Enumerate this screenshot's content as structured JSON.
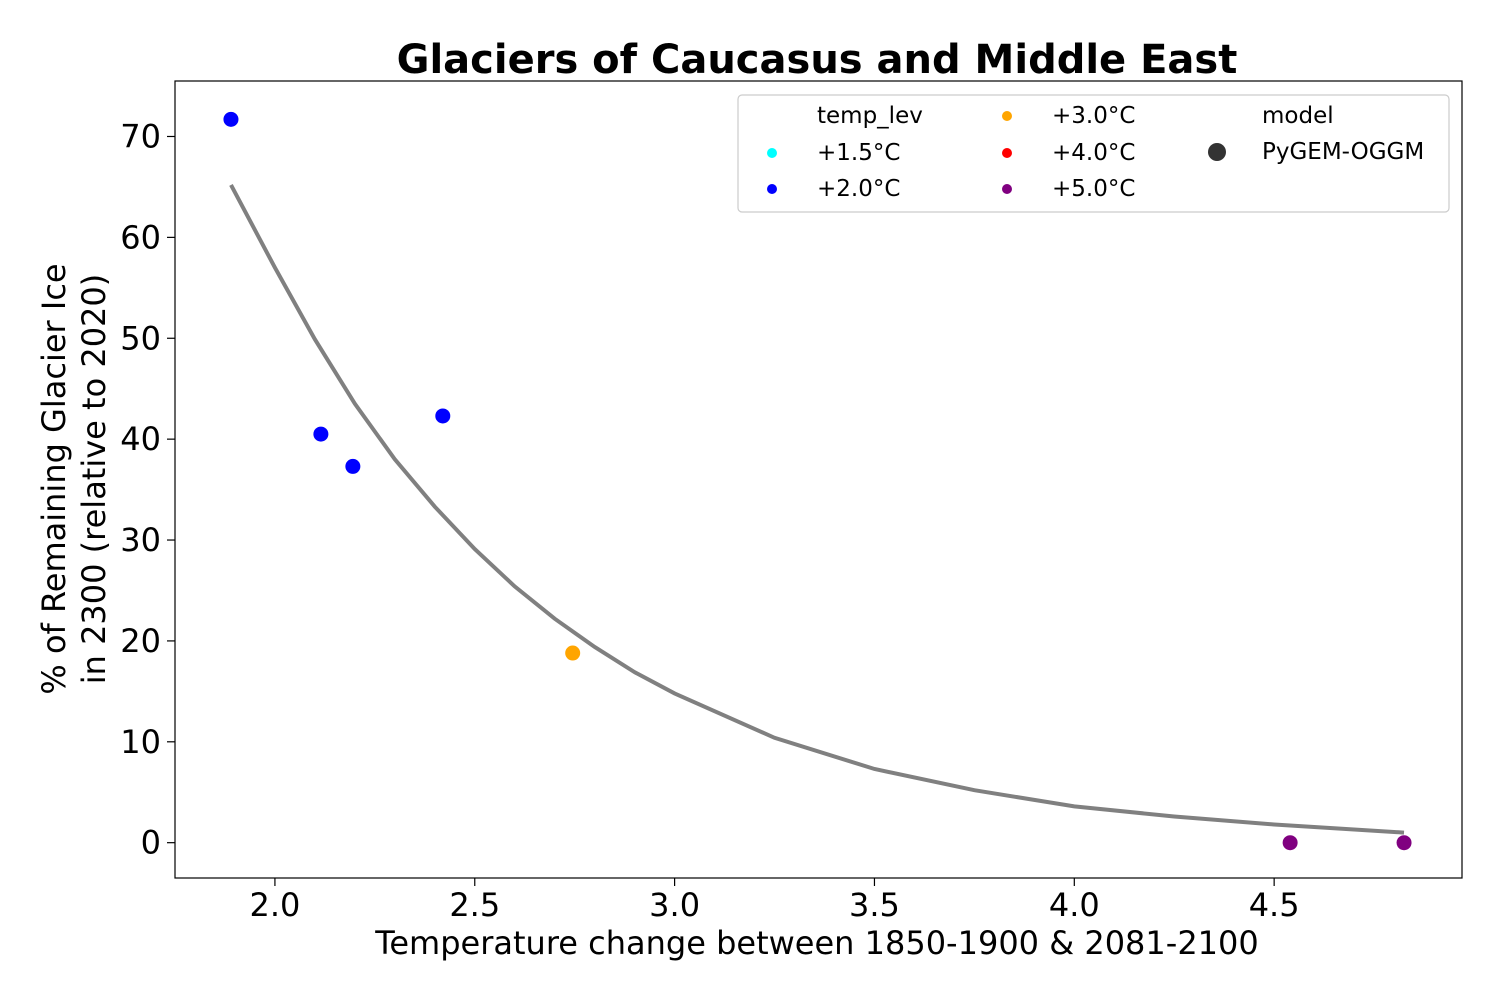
{
  "chart_data": {
    "type": "scatter",
    "title": "Glaciers of Caucasus and Middle East",
    "xlabel": "Temperature change between 1850-1900 & 2081-2100",
    "ylabel_line1": "% of Remaining Glacier Ice",
    "ylabel_line2": "in 2300 (relative to 2020)",
    "xlim": [
      1.75,
      4.97
    ],
    "ylim": [
      -3.5,
      75.5
    ],
    "xticks": [
      2.0,
      2.5,
      3.0,
      3.5,
      4.0,
      4.5
    ],
    "xtick_labels": [
      "2.0",
      "2.5",
      "3.0",
      "3.5",
      "4.0",
      "4.5"
    ],
    "yticks": [
      0,
      10,
      20,
      30,
      40,
      50,
      60,
      70
    ],
    "ytick_labels": [
      "0",
      "10",
      "20",
      "30",
      "40",
      "50",
      "60",
      "70"
    ],
    "grid": false,
    "points": [
      {
        "x": 1.89,
        "y": 71.7,
        "temp_lev": "+2.0°C",
        "model": "PyGEM-OGGM"
      },
      {
        "x": 2.115,
        "y": 40.5,
        "temp_lev": "+2.0°C",
        "model": "PyGEM-OGGM"
      },
      {
        "x": 2.195,
        "y": 37.3,
        "temp_lev": "+2.0°C",
        "model": "PyGEM-OGGM"
      },
      {
        "x": 2.42,
        "y": 42.3,
        "temp_lev": "+2.0°C",
        "model": "PyGEM-OGGM"
      },
      {
        "x": 2.745,
        "y": 18.8,
        "temp_lev": "+3.0°C",
        "model": "PyGEM-OGGM"
      },
      {
        "x": 4.54,
        "y": 0.0,
        "temp_lev": "+5.0°C",
        "model": "PyGEM-OGGM"
      },
      {
        "x": 4.825,
        "y": 0.0,
        "temp_lev": "+5.0°C",
        "model": "PyGEM-OGGM"
      }
    ],
    "fit_curve": {
      "color": "#808080",
      "x": [
        1.89,
        2.0,
        2.1,
        2.2,
        2.3,
        2.4,
        2.5,
        2.6,
        2.7,
        2.8,
        2.9,
        3.0,
        3.25,
        3.5,
        3.75,
        4.0,
        4.25,
        4.5,
        4.825
      ],
      "y": [
        65.2,
        57.0,
        49.9,
        43.5,
        38.0,
        33.3,
        29.1,
        25.4,
        22.2,
        19.4,
        16.9,
        14.8,
        10.4,
        7.3,
        5.2,
        3.6,
        2.6,
        1.8,
        1.0
      ]
    },
    "legend": {
      "placement": "top-right",
      "temp_title": "temp_lev",
      "temp_levels": [
        {
          "label": "+1.5°C",
          "color": "#00ffff"
        },
        {
          "label": "+2.0°C",
          "color": "#0000ff"
        },
        {
          "label": "+3.0°C",
          "color": "#ffa500"
        },
        {
          "label": "+4.0°C",
          "color": "#ff0000"
        },
        {
          "label": "+5.0°C",
          "color": "#800080"
        }
      ],
      "model_title": "model",
      "models": [
        {
          "label": "PyGEM-OGGM",
          "color": "#333333"
        }
      ]
    }
  }
}
